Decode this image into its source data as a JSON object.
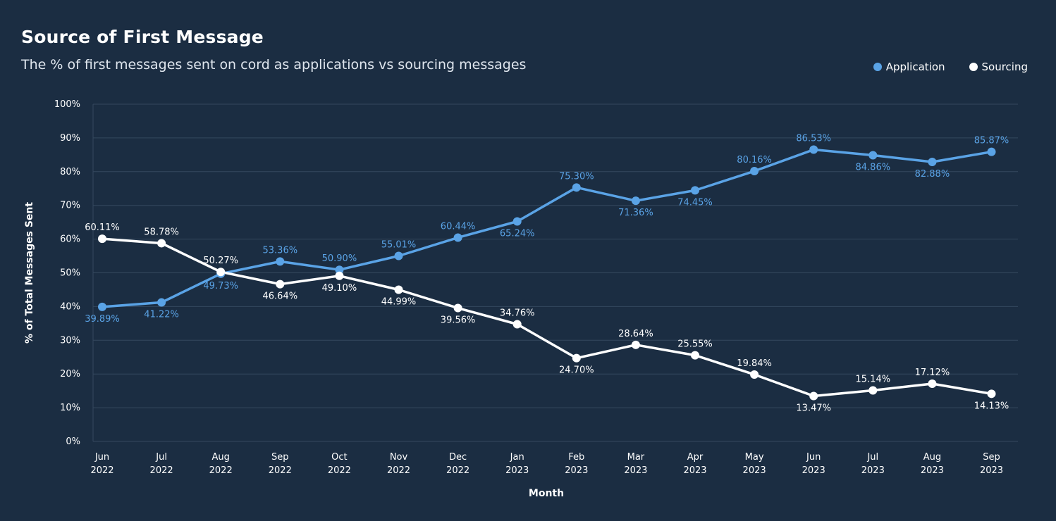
{
  "header": {
    "title": "Source of First Message",
    "subtitle": "The % of first messages sent on cord as applications vs sourcing messages"
  },
  "colors": {
    "background": "#1b2d42",
    "application": "#5aa3e6",
    "sourcing": "#ffffff",
    "grid": "#34485e"
  },
  "chart_data": {
    "type": "line",
    "title": "Source of First Message",
    "subtitle": "The % of first messages sent on cord as applications vs sourcing messages",
    "xlabel": "Month",
    "ylabel": "% of Total Messages Sent",
    "ylim": [
      0,
      100
    ],
    "yticks": [
      "0%",
      "10%",
      "20%",
      "30%",
      "40%",
      "50%",
      "60%",
      "70%",
      "80%",
      "90%",
      "100%"
    ],
    "grid": true,
    "legend_position": "top-right",
    "categories": [
      [
        "Jun",
        "2022"
      ],
      [
        "Jul",
        "2022"
      ],
      [
        "Aug",
        "2022"
      ],
      [
        "Sep",
        "2022"
      ],
      [
        "Oct",
        "2022"
      ],
      [
        "Nov",
        "2022"
      ],
      [
        "Dec",
        "2022"
      ],
      [
        "Jan",
        "2023"
      ],
      [
        "Feb",
        "2023"
      ],
      [
        "Mar",
        "2023"
      ],
      [
        "Apr",
        "2023"
      ],
      [
        "May",
        "2023"
      ],
      [
        "Jun",
        "2023"
      ],
      [
        "Jul",
        "2023"
      ],
      [
        "Aug",
        "2023"
      ],
      [
        "Sep",
        "2023"
      ]
    ],
    "series": [
      {
        "name": "Application",
        "color": "#5aa3e6",
        "values": [
          39.89,
          41.22,
          49.73,
          53.36,
          50.9,
          55.01,
          60.44,
          65.24,
          75.3,
          71.36,
          74.45,
          80.16,
          86.53,
          84.86,
          82.88,
          85.87
        ],
        "labels": [
          "39.89%",
          "41.22%",
          "49.73%",
          "53.36%",
          "50.90%",
          "55.01%",
          "60.44%",
          "65.24%",
          "75.30%",
          "71.36%",
          "74.45%",
          "80.16%",
          "86.53%",
          "84.86%",
          "82.88%",
          "85.87%"
        ],
        "label_side": [
          "below",
          "below",
          "below",
          "above",
          "above",
          "above",
          "above",
          "below",
          "above",
          "below",
          "below",
          "above",
          "above",
          "below",
          "below",
          "above"
        ]
      },
      {
        "name": "Sourcing",
        "color": "#ffffff",
        "values": [
          60.11,
          58.78,
          50.27,
          46.64,
          49.1,
          44.99,
          39.56,
          34.76,
          24.7,
          28.64,
          25.55,
          19.84,
          13.47,
          15.14,
          17.12,
          14.13
        ],
        "labels": [
          "60.11%",
          "58.78%",
          "50.27%",
          "46.64%",
          "49.10%",
          "44.99%",
          "39.56%",
          "34.76%",
          "24.70%",
          "28.64%",
          "25.55%",
          "19.84%",
          "13.47%",
          "15.14%",
          "17.12%",
          "14.13%"
        ],
        "label_side": [
          "above",
          "above",
          "above",
          "below",
          "below",
          "below",
          "below",
          "above",
          "below",
          "above",
          "above",
          "above",
          "below",
          "above",
          "above",
          "below"
        ]
      }
    ]
  }
}
